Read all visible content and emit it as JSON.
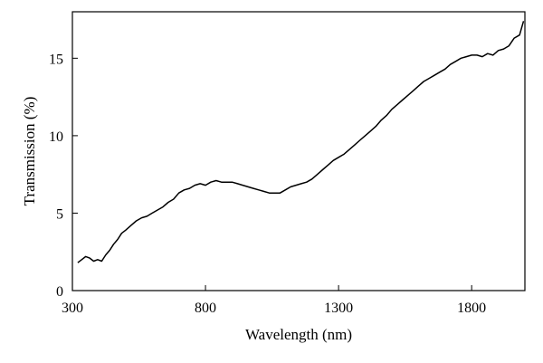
{
  "chart_data": {
    "type": "line",
    "title": "",
    "xlabel": "Wavelength (nm)",
    "ylabel": "Transmission (%)",
    "xlim": [
      300,
      2000
    ],
    "ylim": [
      0,
      18
    ],
    "xticks": [
      300,
      800,
      1300,
      1800
    ],
    "yticks": [
      0,
      5,
      10,
      15
    ],
    "grid": false,
    "legend": "none",
    "series": [
      {
        "color": "#000000",
        "x": [
          320,
          335,
          350,
          365,
          380,
          395,
          410,
          425,
          440,
          455,
          470,
          485,
          500,
          520,
          540,
          560,
          580,
          600,
          620,
          640,
          660,
          680,
          700,
          720,
          740,
          760,
          780,
          800,
          820,
          840,
          860,
          880,
          900,
          920,
          940,
          960,
          980,
          1000,
          1020,
          1040,
          1060,
          1080,
          1100,
          1120,
          1140,
          1160,
          1180,
          1200,
          1220,
          1240,
          1260,
          1280,
          1300,
          1320,
          1340,
          1360,
          1380,
          1400,
          1420,
          1440,
          1460,
          1480,
          1500,
          1520,
          1540,
          1560,
          1580,
          1600,
          1620,
          1640,
          1660,
          1680,
          1700,
          1720,
          1740,
          1760,
          1780,
          1800,
          1820,
          1840,
          1860,
          1880,
          1900,
          1920,
          1940,
          1960,
          1980,
          1995
        ],
        "y": [
          1.8,
          2.0,
          2.2,
          2.1,
          1.9,
          2.0,
          1.9,
          2.3,
          2.6,
          3.0,
          3.3,
          3.7,
          3.9,
          4.2,
          4.5,
          4.7,
          4.8,
          5.0,
          5.2,
          5.4,
          5.7,
          5.9,
          6.3,
          6.5,
          6.6,
          6.8,
          6.9,
          6.8,
          7.0,
          7.1,
          7.0,
          7.0,
          7.0,
          6.9,
          6.8,
          6.7,
          6.6,
          6.5,
          6.4,
          6.3,
          6.3,
          6.3,
          6.5,
          6.7,
          6.8,
          6.9,
          7.0,
          7.2,
          7.5,
          7.8,
          8.1,
          8.4,
          8.6,
          8.8,
          9.1,
          9.4,
          9.7,
          10.0,
          10.3,
          10.6,
          11.0,
          11.3,
          11.7,
          12.0,
          12.3,
          12.6,
          12.9,
          13.2,
          13.5,
          13.7,
          13.9,
          14.1,
          14.3,
          14.6,
          14.8,
          15.0,
          15.1,
          15.2,
          15.2,
          15.1,
          15.3,
          15.2,
          15.5,
          15.6,
          15.8,
          16.3,
          16.5,
          17.4
        ]
      }
    ]
  }
}
